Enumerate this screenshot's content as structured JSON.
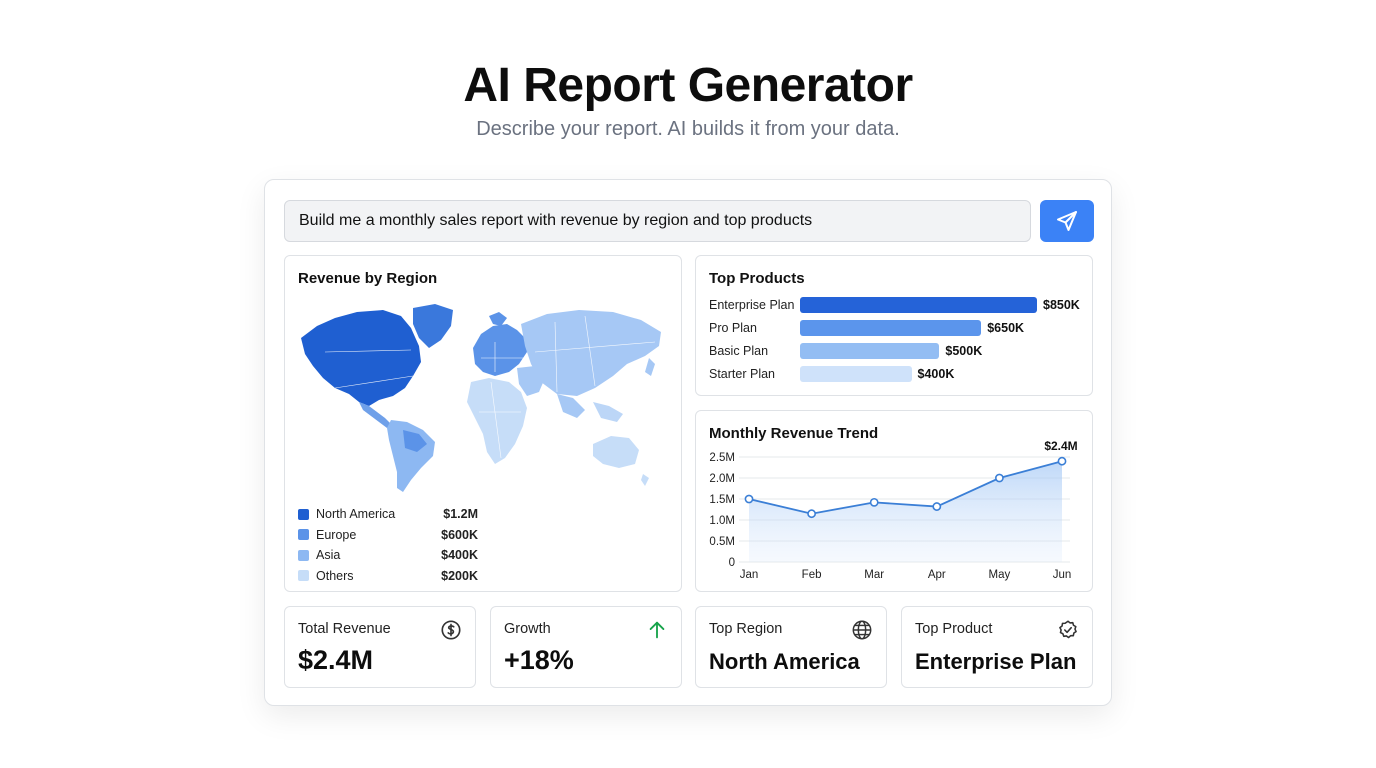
{
  "header": {
    "title": "AI Report Generator",
    "subtitle": "Describe your report. AI builds it from your data."
  },
  "prompt": {
    "value": "Build me a monthly sales report with revenue by region and top products",
    "send_icon": "send-icon"
  },
  "region_panel": {
    "title": "Revenue by Region",
    "legend": [
      {
        "name": "North America",
        "value": "$1.2M",
        "color": "#1f5fd1"
      },
      {
        "name": "Europe",
        "value": "$600K",
        "color": "#5b93e8"
      },
      {
        "name": "Asia",
        "value": "$400K",
        "color": "#8db8f2"
      },
      {
        "name": "Others",
        "value": "$200K",
        "color": "#c6ddf8"
      }
    ]
  },
  "products_panel": {
    "title": "Top Products",
    "chart_data": {
      "type": "bar",
      "categories": [
        "Enterprise Plan",
        "Pro Plan",
        "Basic Plan",
        "Starter Plan"
      ],
      "values": [
        850,
        650,
        500,
        400
      ],
      "value_labels": [
        "$850K",
        "$650K",
        "$500K",
        "$400K"
      ],
      "colors": [
        "#2563d8",
        "#5b95ec",
        "#93bdf3",
        "#cfe2fa"
      ]
    }
  },
  "trend_panel": {
    "title": "Monthly Revenue Trend",
    "chart_data": {
      "type": "area",
      "x": [
        "Jan",
        "Feb",
        "Mar",
        "Apr",
        "May",
        "Jun"
      ],
      "values": [
        1.5,
        1.15,
        1.42,
        1.32,
        2.0,
        2.4
      ],
      "y_ticks": [
        "2.5M",
        "2.0M",
        "1.5M",
        "1.0M",
        "0.5M",
        "0"
      ],
      "ylim": [
        0,
        2.5
      ],
      "last_label": "$2.4M",
      "color": "#3b7fd6",
      "grid": true
    }
  },
  "kpis": [
    {
      "label": "Total Revenue",
      "value": "$2.4M",
      "icon": "dollar-icon"
    },
    {
      "label": "Growth",
      "value": "+18%",
      "icon": "arrow-up-icon",
      "icon_color": "#16a34a"
    },
    {
      "label": "Top Region",
      "value": "North America",
      "icon": "globe-icon"
    },
    {
      "label": "Top Product",
      "value": "Enterprise Plan",
      "icon": "badge-check-icon"
    }
  ]
}
